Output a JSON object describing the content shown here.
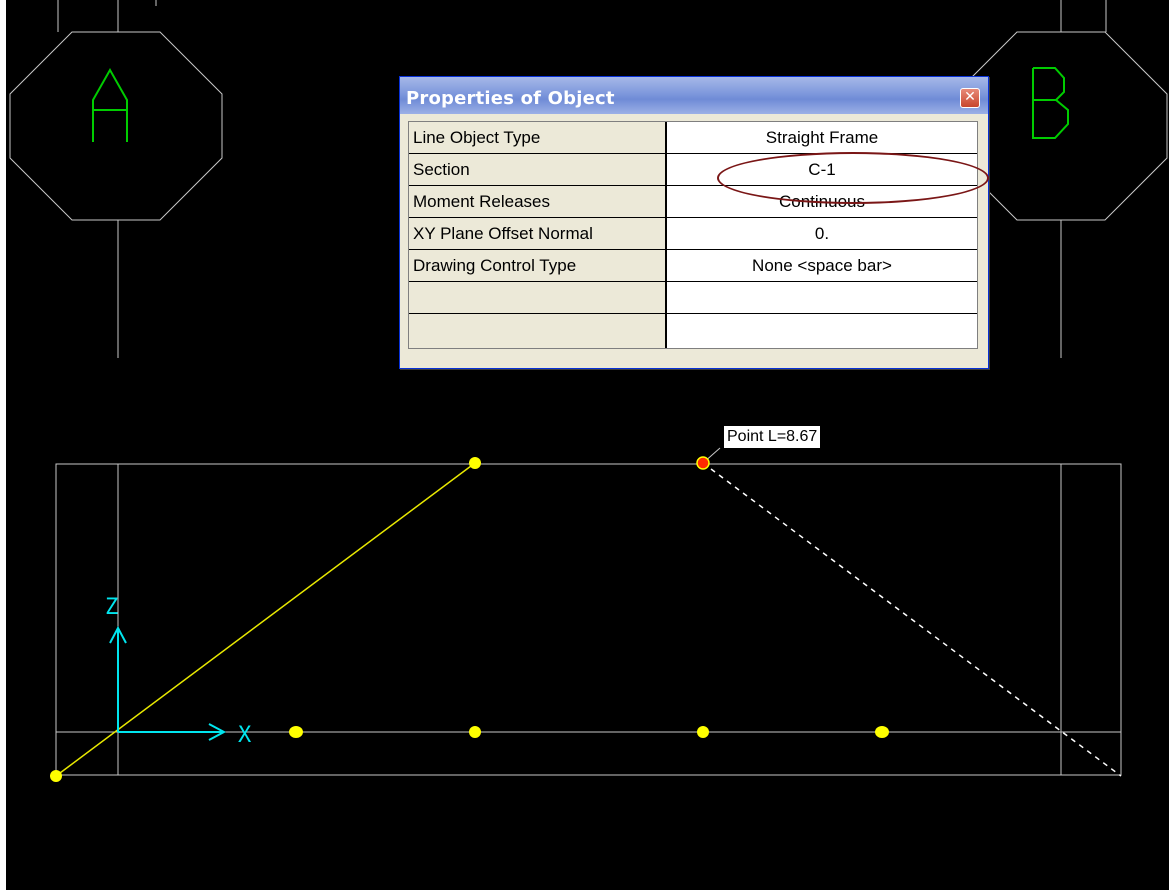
{
  "grid_bubbles": [
    {
      "label": "A",
      "color": "#00cc00"
    },
    {
      "label": "B",
      "color": "#00cc00"
    }
  ],
  "dialog": {
    "title": "Properties of Object",
    "close_icon": "close-icon",
    "rows": [
      {
        "key": "Line Object Type",
        "value": "Straight Frame"
      },
      {
        "key": "Section",
        "value": "C-1"
      },
      {
        "key": "Moment Releases",
        "value": "Continuous"
      },
      {
        "key": "XY Plane Offset Normal",
        "value": "0."
      },
      {
        "key": "Drawing Control Type",
        "value": "None  <space bar>"
      },
      {
        "key": "",
        "value": ""
      },
      {
        "key": "",
        "value": ""
      }
    ],
    "highlighted_row": "Section"
  },
  "tooltip": {
    "text": "Point  L=8.67"
  },
  "axes": {
    "z_label": "Z",
    "x_label": "X",
    "color": "#00e5ee"
  },
  "colors": {
    "background": "#000000",
    "grid_lines": "#c8c8c8",
    "frame_line": "#e8e800",
    "joint": "#ffff00",
    "selected_joint": "#ff2a00",
    "rubber_band": "#ffffff",
    "highlight_ellipse": "#7a1616"
  }
}
